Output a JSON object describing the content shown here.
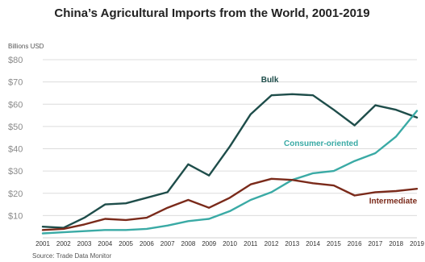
{
  "chart_data": {
    "type": "line",
    "title": "China’s Agricultural Imports from the World, 2001-2019",
    "unit_label": "Billions USD",
    "source": "Source: Trade Data Monitor",
    "ylim": [
      0,
      80
    ],
    "y_ticks": [
      "$80",
      "$70",
      "$60",
      "$50",
      "$40",
      "$30",
      "$20",
      "$10"
    ],
    "y_tick_values": [
      80,
      70,
      60,
      50,
      40,
      30,
      20,
      10
    ],
    "grid": true,
    "x": [
      "2001",
      "2002",
      "2003",
      "2004",
      "2005",
      "2006",
      "2007",
      "2008",
      "2009",
      "2010",
      "2011",
      "2012",
      "2013",
      "2014",
      "2015",
      "2016",
      "2017",
      "2018",
      "2019"
    ],
    "series": [
      {
        "name": "Bulk",
        "color": "#1e4d4a",
        "values": [
          5.0,
          4.5,
          9.0,
          15.0,
          15.5,
          18.0,
          20.5,
          33.0,
          28.0,
          41.0,
          55.5,
          64.0,
          64.5,
          64.0,
          57.5,
          50.5,
          59.5,
          57.5,
          54.0
        ]
      },
      {
        "name": "Consumer-oriented",
        "color": "#3aaaa5",
        "values": [
          2.0,
          2.5,
          3.0,
          3.5,
          3.5,
          4.0,
          5.5,
          7.5,
          8.5,
          12.0,
          17.0,
          20.5,
          26.0,
          29.0,
          30.0,
          34.5,
          38.0,
          45.5,
          57.0
        ]
      },
      {
        "name": "Intermediate",
        "color": "#7a2a1a",
        "values": [
          3.5,
          4.0,
          6.0,
          8.5,
          8.0,
          9.0,
          13.5,
          17.0,
          13.5,
          18.0,
          24.0,
          26.5,
          26.0,
          24.5,
          23.5,
          19.0,
          20.5,
          21.0,
          22.0
        ]
      }
    ]
  }
}
